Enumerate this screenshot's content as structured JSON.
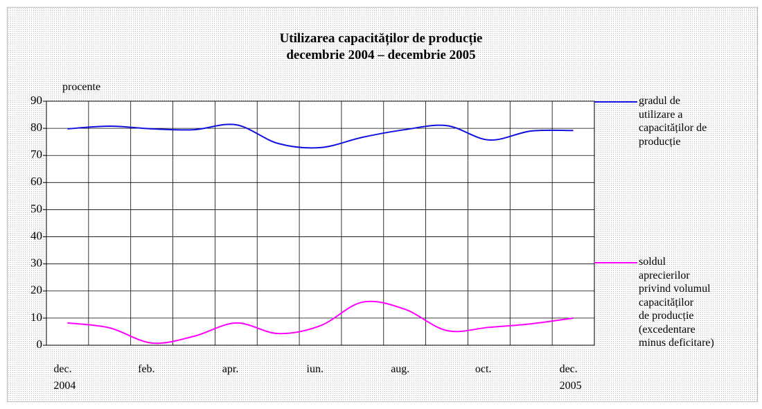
{
  "chart_data": {
    "type": "line",
    "title": "Utilizarea capacităților de producție\ndecembrie 2004 – decembrie 2005",
    "y_label": "procente",
    "categories": [
      "dec.\n2004",
      null,
      "feb.",
      null,
      "apr.",
      null,
      "iun.",
      null,
      "aug.",
      null,
      "oct.",
      null,
      "dec.\n2005"
    ],
    "series": [
      {
        "name": "gradul de\nutilizare a\ncapacităților de\nproducție",
        "color": "#1010e0",
        "values": [
          79.8,
          80.8,
          79.8,
          79.5,
          81.3,
          74.4,
          72.9,
          76.7,
          79.5,
          81,
          75.7,
          79,
          79.2
        ]
      },
      {
        "name": "soldul\naprecierilor\nprivind volumul\ncapacităților\nde producție\n(excedentare\nminus deficitare)",
        "color": "#ff00ff",
        "values": [
          8.2,
          6.4,
          0.8,
          3.3,
          8.2,
          4.3,
          7.2,
          15.9,
          13.3,
          5.4,
          6.6,
          7.9,
          10
        ]
      }
    ],
    "ylim": [
      0,
      90
    ],
    "yticks": [
      0,
      10,
      20,
      30,
      40,
      50,
      60,
      70,
      80,
      90
    ],
    "grid": true
  }
}
